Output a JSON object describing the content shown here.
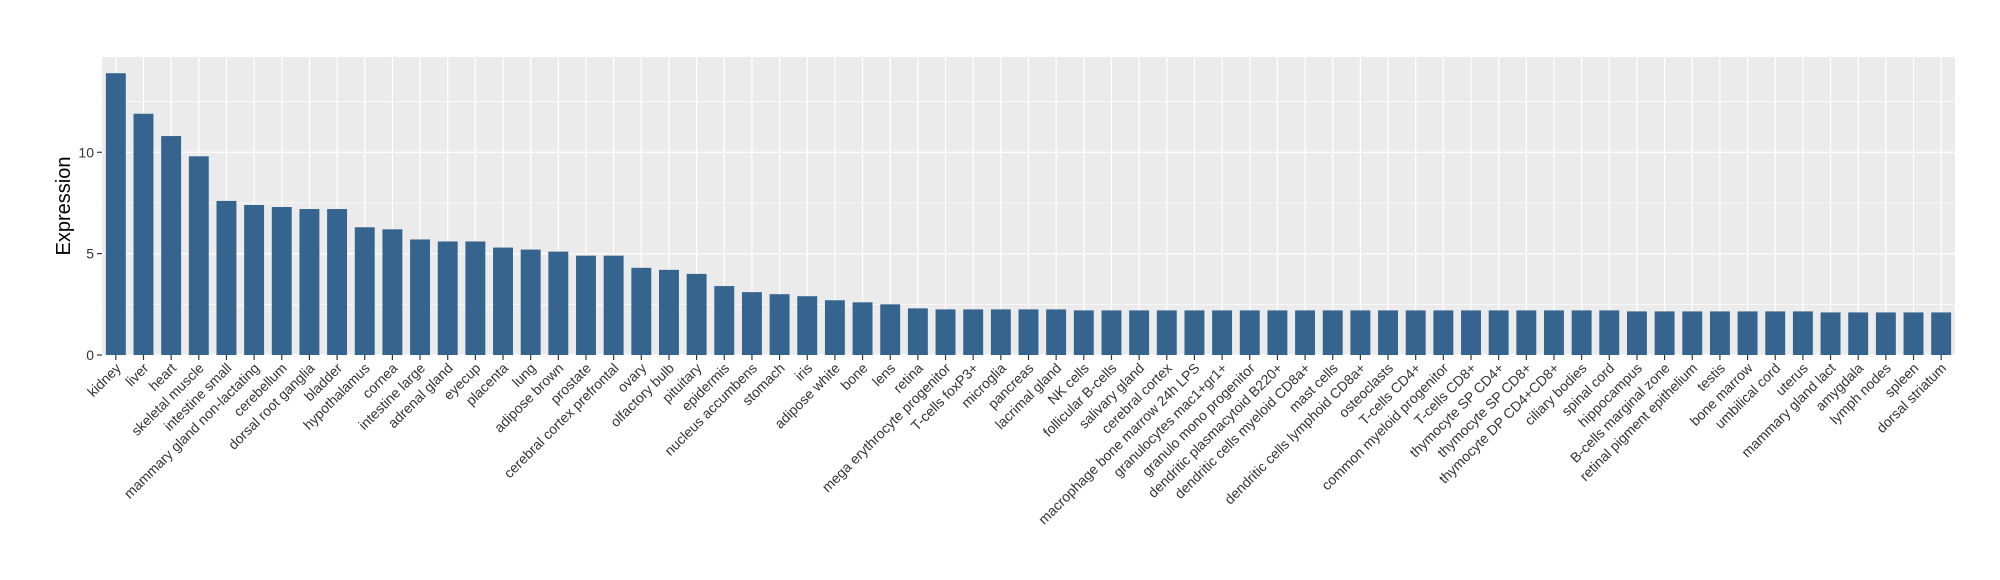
{
  "chart_data": {
    "type": "bar",
    "title": "",
    "xlabel": "",
    "ylabel": "Expression",
    "ylim": [
      0,
      14.7
    ],
    "y_ticks": [
      0,
      5,
      10
    ],
    "grid": true,
    "bar_color": "#35648e",
    "panel_background": "#ebebeb",
    "grid_color": "#ffffff",
    "categories": [
      "kidney",
      "liver",
      "heart",
      "skeletal muscle",
      "intestine small",
      "mammary gland non-lactating",
      "cerebellum",
      "dorsal root ganglia",
      "bladder",
      "hypothalamus",
      "cornea",
      "intestine large",
      "adrenal gland",
      "eyecup",
      "placenta",
      "lung",
      "adipose brown",
      "prostate",
      "cerebral cortex prefrontal",
      "ovary",
      "olfactory bulb",
      "pituitary",
      "epidermis",
      "nucleus accumbens",
      "stomach",
      "iris",
      "adipose white",
      "bone",
      "lens",
      "retina",
      "mega erythrocyte progenitor",
      "T-cells foxP3+",
      "microglia",
      "pancreas",
      "lacrimal gland",
      "NK cells",
      "follicular B-cells",
      "salivary gland",
      "cerebral cortex",
      "macrophage bone marrow 24h LPS",
      "granulocytes mac1+gr1+",
      "granulo mono progenitor",
      "dendritic plasmacytoid B220+",
      "dendritic cells myeloid CD8a+",
      "mast cells",
      "dendritic cells lymphoid CD8a+",
      "osteoclasts",
      "T-cells CD4+",
      "common myeloid progenitor",
      "T-cells CD8+",
      "thymocyte SP CD4+",
      "thymocyte SP CD8+",
      "thymocyte DP CD4+CD8+",
      "ciliary bodies",
      "spinal cord",
      "hippocampus",
      "B-cells marginal zone",
      "retinal pigment epithelium",
      "testis",
      "bone marrow",
      "umbilical cord",
      "uterus",
      "mammary gland lact",
      "amygdala",
      "lymph nodes",
      "spleen",
      "dorsal striatum"
    ],
    "values": [
      13.9,
      11.9,
      10.8,
      9.8,
      7.6,
      7.4,
      7.3,
      7.2,
      7.2,
      6.3,
      6.2,
      5.7,
      5.6,
      5.6,
      5.3,
      5.2,
      5.1,
      4.9,
      4.9,
      4.3,
      4.2,
      4.0,
      3.4,
      3.1,
      3.0,
      2.9,
      2.7,
      2.6,
      2.5,
      2.3,
      2.25,
      2.25,
      2.25,
      2.25,
      2.25,
      2.2,
      2.2,
      2.2,
      2.2,
      2.2,
      2.2,
      2.2,
      2.2,
      2.2,
      2.2,
      2.2,
      2.2,
      2.2,
      2.2,
      2.2,
      2.2,
      2.2,
      2.2,
      2.2,
      2.2,
      2.15,
      2.15,
      2.15,
      2.15,
      2.15,
      2.15,
      2.15,
      2.1,
      2.1,
      2.1,
      2.1,
      2.1
    ]
  }
}
